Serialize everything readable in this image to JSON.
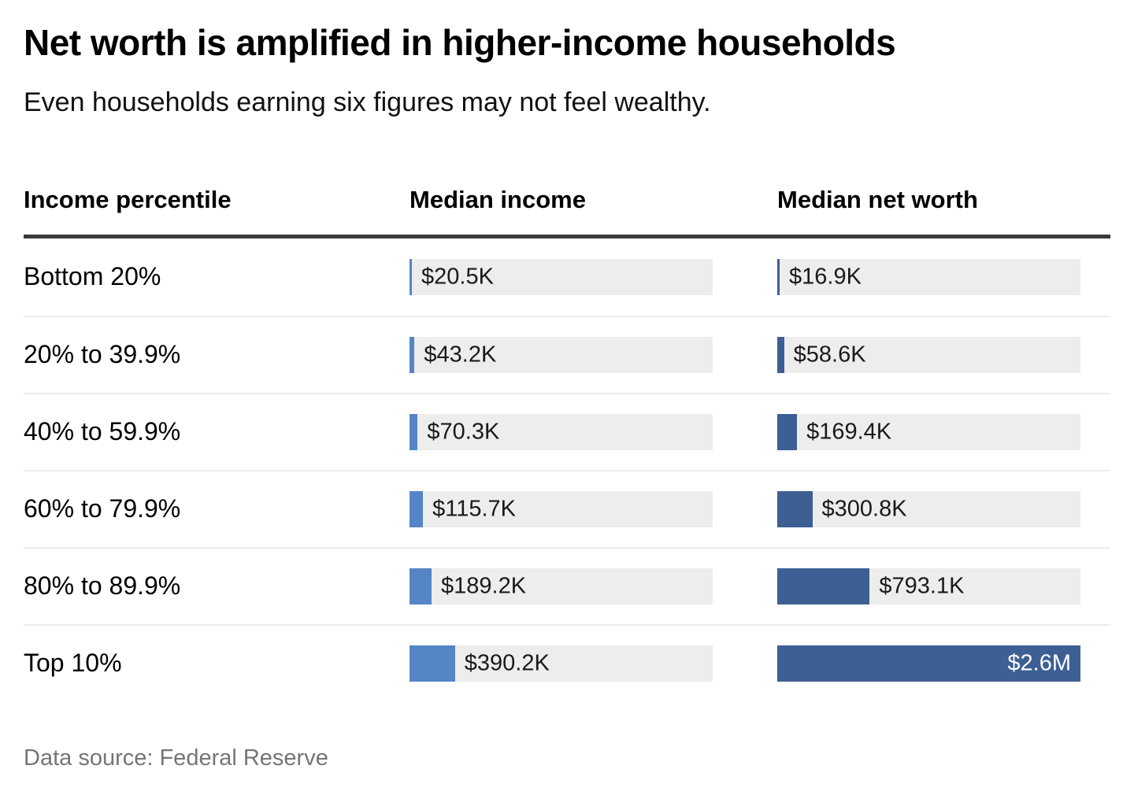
{
  "header": {
    "title": "Net worth is amplified in higher-income households",
    "subtitle": "Even households earning six figures may not feel wealthy."
  },
  "table": {
    "columns": [
      "Income percentile",
      "Median income",
      "Median net worth"
    ]
  },
  "chart_data": {
    "type": "bar",
    "orientation": "horizontal",
    "title": "Net worth is amplified in higher-income households",
    "subtitle": "Even households earning six figures may not feel wealthy.",
    "categories": [
      "Bottom 20%",
      "20% to 39.9%",
      "40% to 59.9%",
      "60% to 79.9%",
      "80% to 89.9%",
      "Top 10%"
    ],
    "series": [
      {
        "name": "Median income",
        "values_usd_thousands": [
          20.5,
          43.2,
          70.3,
          115.7,
          189.2,
          390.2
        ],
        "labels": [
          "$20.5K",
          "$43.2K",
          "$70.3K",
          "$115.7K",
          "$189.2K",
          "$390.2K"
        ],
        "color": "#5585c5"
      },
      {
        "name": "Median net worth",
        "values_usd_thousands": [
          16.9,
          58.6,
          169.4,
          300.8,
          793.1,
          2600
        ],
        "labels": [
          "$16.9K",
          "$58.6K",
          "$169.4K",
          "$300.8K",
          "$793.1K",
          "$2.6M"
        ],
        "color": "#3d5f94"
      }
    ],
    "scale_max_usd_thousands": 2600,
    "value_labels": "inside-start, inside-end-white-when-bar-nearly-full",
    "grid": false,
    "legend": "none"
  },
  "footer": {
    "source": "Data source: Federal Reserve"
  },
  "colors": {
    "income_bar": "#5585c5",
    "net_worth_bar": "#3d5f94",
    "bar_track": "#ededed",
    "header_rule": "#3a3a3a",
    "row_divider": "#ededed",
    "source_text": "#757575",
    "bar_label_inside": "#ffffff"
  }
}
